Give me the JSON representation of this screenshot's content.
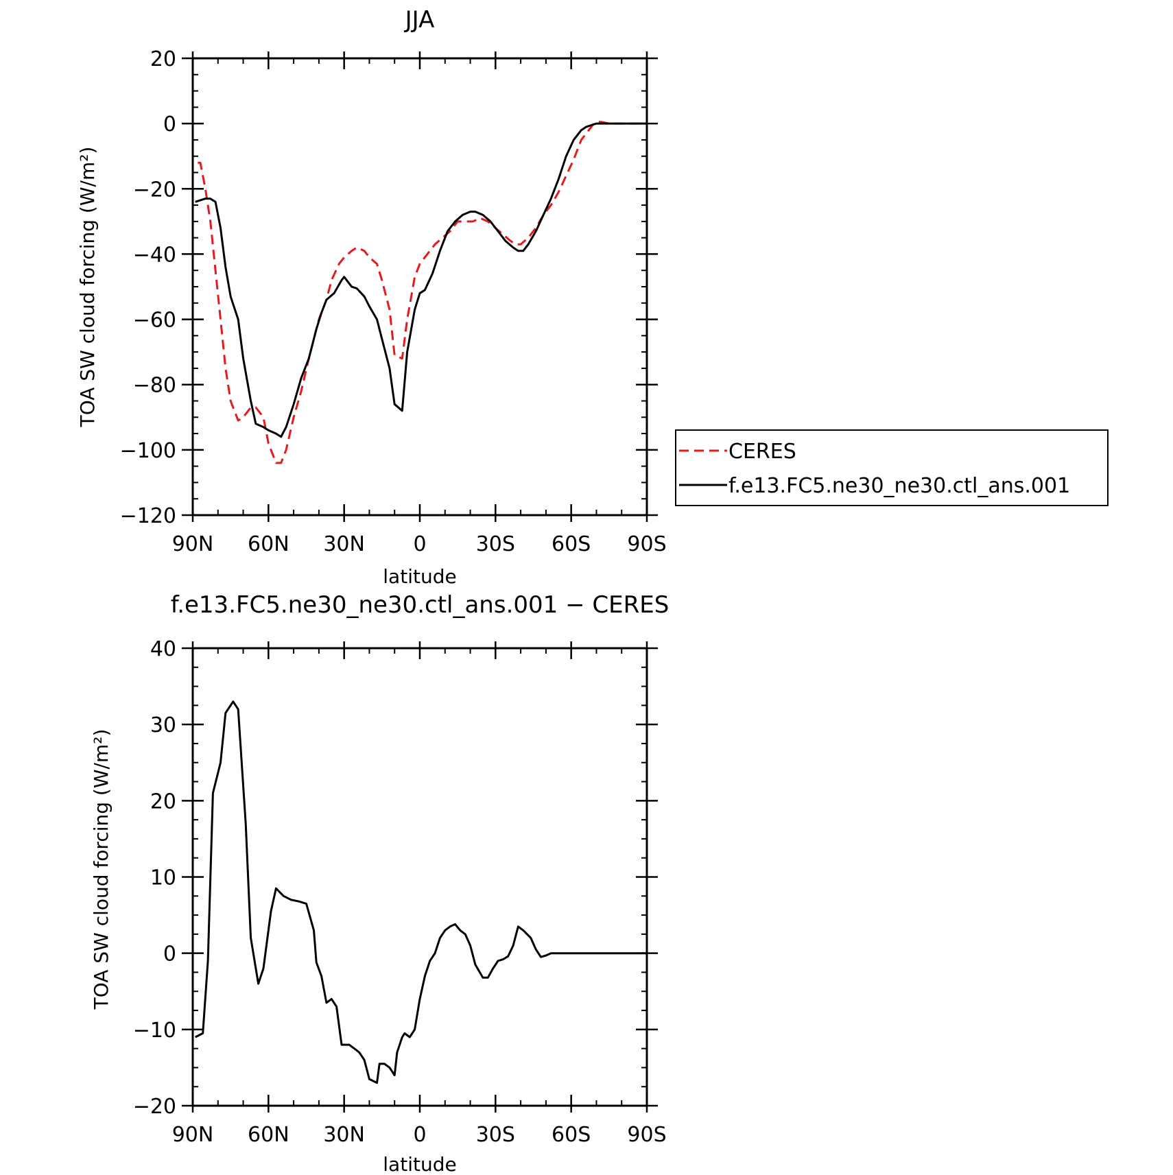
{
  "chart_data": [
    {
      "type": "line",
      "title": "JJA",
      "xlabel": "latitude",
      "ylabel": "TOA SW cloud forcing (W/m²)",
      "xlim": [
        90,
        -90
      ],
      "ylim": [
        -120,
        20
      ],
      "xticks": [
        90,
        60,
        30,
        0,
        -30,
        -60,
        -90
      ],
      "xticklabels": [
        "90N",
        "60N",
        "30N",
        "0",
        "30S",
        "60S",
        "90S"
      ],
      "yticks": [
        -120,
        -100,
        -80,
        -60,
        -40,
        -20,
        0,
        20
      ],
      "yticklabels": [
        "−120",
        "−100",
        "−80",
        "−60",
        "−40",
        "−20",
        "0",
        "20"
      ],
      "legend_position": "right",
      "series": [
        {
          "name": "CERES",
          "color": "#e41a1c",
          "dash": "dashed",
          "x": [
            88,
            87,
            85,
            83,
            81,
            79,
            77,
            75,
            72,
            70,
            67,
            65,
            62,
            60,
            57,
            55,
            53,
            50,
            47,
            44,
            40,
            37,
            35,
            32,
            30,
            27,
            25,
            22,
            20,
            17,
            15,
            12,
            10,
            7,
            5,
            2,
            0,
            -3,
            -6,
            -9,
            -12,
            -15,
            -18,
            -21,
            -24,
            -27,
            -30,
            -33,
            -36,
            -38,
            -40,
            -43,
            -46,
            -49,
            -52,
            -55,
            -58,
            -61,
            -64,
            -67,
            -69,
            -70,
            -72,
            -75,
            -78,
            -81,
            -84,
            -87,
            -90
          ],
          "y": [
            -12,
            -12,
            -20,
            -30,
            -45,
            -60,
            -75,
            -85,
            -91,
            -90,
            -87,
            -87,
            -90,
            -98,
            -104,
            -104,
            -100,
            -90,
            -82,
            -72,
            -60,
            -54,
            -48,
            -43,
            -41,
            -39,
            -38,
            -39,
            -41,
            -43,
            -48,
            -57,
            -71,
            -72,
            -60,
            -47,
            -43,
            -40,
            -37,
            -35,
            -33,
            -30,
            -30,
            -30,
            -29,
            -30,
            -32,
            -34,
            -36,
            -37,
            -37,
            -35,
            -32,
            -28,
            -25,
            -21,
            -16,
            -11,
            -5,
            -2,
            0,
            0.5,
            0.5,
            0,
            0,
            0,
            0,
            0,
            0
          ]
        },
        {
          "name": "f.e13.FC5.ne30_ne30.ctl_ans.001",
          "color": "#000000",
          "dash": "solid",
          "x": [
            89,
            87,
            85,
            83,
            81,
            79,
            77,
            75,
            72,
            70,
            67,
            65,
            62,
            60,
            57,
            55,
            53,
            50,
            47,
            44,
            41,
            39,
            37,
            34,
            31,
            30,
            27,
            25,
            22,
            20,
            17,
            15,
            12,
            10,
            7,
            5,
            2,
            0,
            -2,
            -5,
            -8,
            -11,
            -14,
            -17,
            -20,
            -22,
            -25,
            -28,
            -31,
            -34,
            -37,
            -39,
            -41,
            -43,
            -46,
            -49,
            -52,
            -55,
            -58,
            -61,
            -64,
            -66,
            -68,
            -70,
            -73,
            -76,
            -79,
            -82,
            -85,
            -88,
            -90
          ],
          "y": [
            -24,
            -23.5,
            -23,
            -23,
            -24,
            -32,
            -44,
            -53,
            -60,
            -72,
            -85,
            -92,
            -93,
            -94,
            -95,
            -96,
            -93,
            -86,
            -78,
            -72,
            -63,
            -58,
            -54,
            -52,
            -48,
            -47,
            -50,
            -50.5,
            -53,
            -56,
            -60,
            -66,
            -75,
            -86,
            -88,
            -70,
            -57,
            -52,
            -51,
            -46,
            -39,
            -33,
            -30,
            -28,
            -27,
            -27,
            -28,
            -30,
            -33,
            -36,
            -38,
            -39,
            -39,
            -37,
            -33,
            -28,
            -23,
            -17,
            -10,
            -5,
            -2,
            -1,
            -0.5,
            0,
            0,
            0,
            0,
            0,
            0,
            0,
            0
          ]
        }
      ]
    },
    {
      "type": "line",
      "title": "f.e13.FC5.ne30_ne30.ctl_ans.001 − CERES",
      "xlabel": "latitude",
      "ylabel": "TOA SW cloud forcing (W/m²)",
      "xlim": [
        90,
        -90
      ],
      "ylim": [
        -20,
        40
      ],
      "xticks": [
        90,
        60,
        30,
        0,
        -30,
        -60,
        -90
      ],
      "xticklabels": [
        "90N",
        "60N",
        "30N",
        "0",
        "30S",
        "60S",
        "90S"
      ],
      "yticks": [
        -20,
        -10,
        0,
        10,
        20,
        30,
        40
      ],
      "yticklabels": [
        "−20",
        "−10",
        "0",
        "10",
        "20",
        "30",
        "40"
      ],
      "series": [
        {
          "name": "",
          "color": "#000000",
          "dash": "solid",
          "x": [
            89,
            86,
            84,
            82,
            79,
            77,
            74,
            72,
            69,
            67,
            64,
            62,
            59,
            57,
            54,
            51,
            48,
            45,
            42,
            41,
            39,
            37,
            35,
            33,
            31,
            28,
            26,
            24,
            22,
            20,
            17,
            16,
            14,
            12,
            10,
            9,
            7,
            6,
            4,
            2,
            0,
            -2,
            -4,
            -6,
            -8,
            -10,
            -12,
            -14,
            -16,
            -18,
            -20,
            -22,
            -25,
            -27,
            -29,
            -31,
            -33,
            -35,
            -37,
            -39,
            -41,
            -44,
            -46,
            -48,
            -50,
            -52,
            -54,
            -57,
            -59,
            -61,
            -63,
            -66,
            -69,
            -72,
            -75,
            -78,
            -81,
            -84,
            -87,
            -90
          ],
          "y": [
            -11,
            -10.5,
            -1,
            21,
            25,
            31.5,
            33,
            32,
            17,
            2,
            -4,
            -2,
            5.5,
            8.5,
            7.5,
            7,
            6.8,
            6.5,
            3,
            -1.2,
            -3,
            -6.5,
            -6,
            -7,
            -12,
            -12,
            -12.5,
            -13,
            -14,
            -16.5,
            -17,
            -14.5,
            -14.5,
            -15,
            -16,
            -13,
            -11,
            -10.5,
            -11,
            -10,
            -6,
            -3,
            -1,
            0,
            2,
            3,
            3.5,
            3.8,
            3,
            2.5,
            1,
            -1.5,
            -3.2,
            -3.2,
            -2,
            -1,
            -0.8,
            -0.4,
            1,
            3.5,
            3,
            2,
            0.5,
            -0.5,
            -0.3,
            0,
            0,
            0,
            0,
            0,
            0,
            0,
            0,
            0,
            0,
            0,
            0,
            0,
            0,
            0
          ]
        }
      ]
    }
  ]
}
